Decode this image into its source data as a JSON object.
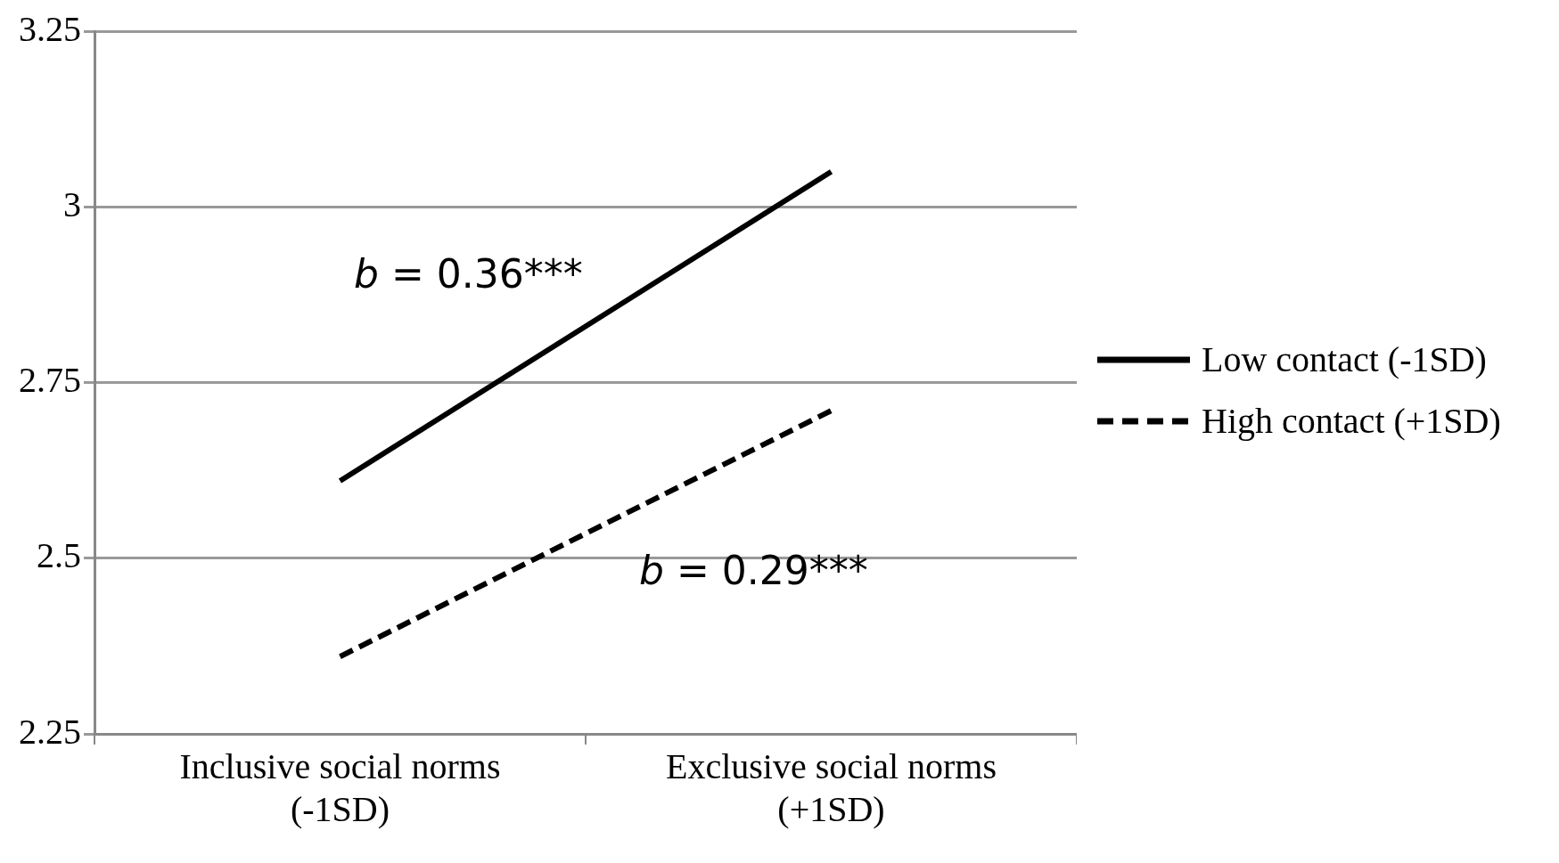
{
  "chart_data": {
    "type": "line",
    "categories": [
      "Inclusive social norms\n(-1SD)",
      "Exclusive social norms\n(+1SD)"
    ],
    "series": [
      {
        "name": "Low contact (-1SD)",
        "color": "#000000",
        "values": [
          2.61,
          3.05
        ],
        "line_style": "solid"
      },
      {
        "name": "High contact (+1SD)",
        "color": "#000000",
        "values": [
          2.36,
          2.71
        ],
        "line_style": "dashed"
      }
    ],
    "ylim": [
      2.25,
      3.25
    ],
    "yticks": [
      2.25,
      2.5,
      2.75,
      3,
      3.25
    ],
    "grid": "y",
    "legend": "right",
    "marker": "none",
    "annotations": [
      "b = 0.36***",
      "b = 0.29***"
    ]
  }
}
